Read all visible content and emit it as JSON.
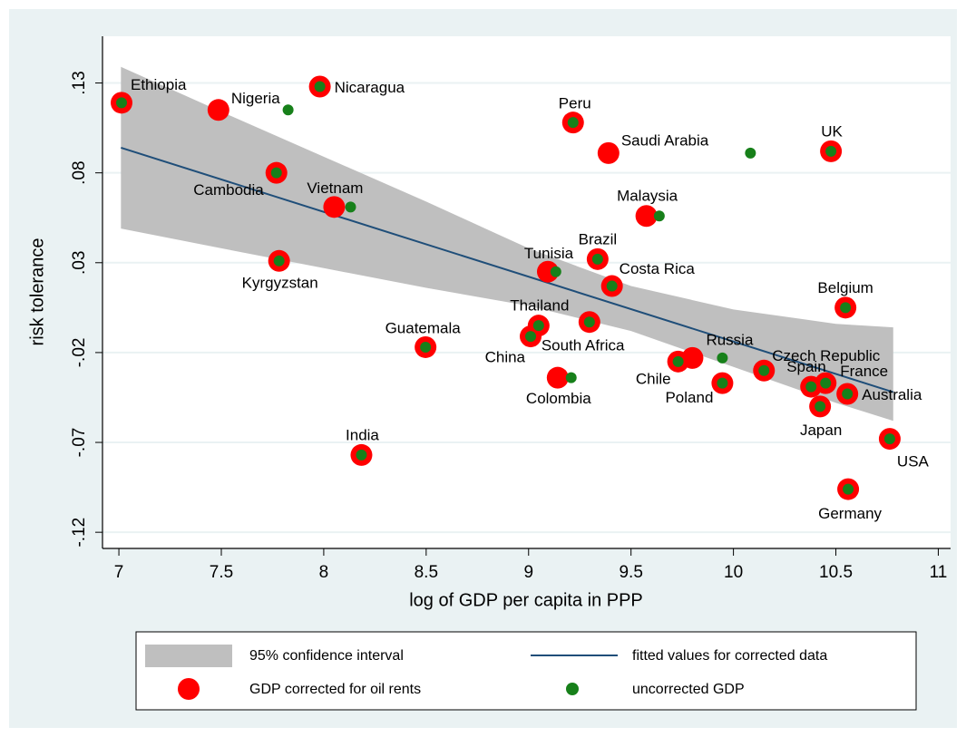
{
  "chart_data": {
    "type": "scatter",
    "xlabel": "log of GDP per capita in PPP",
    "ylabel": "risk tolerance",
    "xlim": [
      6.92,
      11.06
    ],
    "ylim": [
      -0.129,
      0.156
    ],
    "xticks": [
      7,
      7.5,
      8,
      8.5,
      9,
      9.5,
      10,
      10.5,
      11
    ],
    "yticks": [
      {
        "value": 0.13,
        "label": ".13"
      },
      {
        "value": 0.08,
        "label": ".08"
      },
      {
        "value": 0.03,
        "label": ".03"
      },
      {
        "value": -0.02,
        "label": "-.02"
      },
      {
        "value": -0.07,
        "label": "-.07"
      },
      {
        "value": -0.12,
        "label": "-.12"
      }
    ],
    "grid": true,
    "categories": [
      "Ethiopia",
      "Nigeria",
      "Nicaragua",
      "Peru",
      "Saudi Arabia",
      "UK",
      "Cambodia",
      "Vietnam",
      "Malaysia",
      "Kyrgyzstan",
      "Brazil",
      "Tunisia",
      "Costa Rica",
      "Belgium",
      "Thailand",
      "China",
      "South Africa",
      "Guatemala",
      "Russia",
      "Chile",
      "Czech Republic",
      "Colombia",
      "Poland",
      "Spain",
      "France",
      "Australia",
      "Japan",
      "USA",
      "India",
      "Germany"
    ],
    "band": {
      "name": "95% confidence interval",
      "color": "#bfbfbf",
      "x": [
        7.01,
        7.5,
        8,
        8.5,
        9,
        9.5,
        10,
        10.5,
        10.78
      ],
      "upper": [
        0.139,
        0.114,
        0.089,
        0.064,
        0.038,
        0.017,
        0.004,
        -0.004,
        -0.006
      ],
      "lower": [
        0.049,
        0.038,
        0.027,
        0.016,
        0.006,
        -0.008,
        -0.028,
        -0.048,
        -0.058
      ]
    },
    "fit": {
      "name": "fitted values for corrected data",
      "color": "#1f4e79",
      "x": [
        7.01,
        10.78
      ],
      "values": [
        0.094,
        -0.042
      ]
    },
    "series": [
      {
        "name": "GDP corrected for oil rents",
        "color": "#ff0000",
        "x": [
          7.013,
          7.486,
          7.981,
          9.217,
          9.39,
          10.476,
          7.769,
          8.051,
          9.575,
          7.782,
          9.337,
          9.094,
          9.407,
          10.547,
          9.049,
          9.01,
          9.297,
          8.497,
          9.8,
          9.73,
          10.149,
          9.142,
          9.946,
          10.379,
          10.45,
          10.556,
          10.423,
          10.763,
          8.184,
          10.56
        ],
        "values": [
          0.119,
          0.115,
          0.128,
          0.108,
          0.091,
          0.092,
          0.08,
          0.061,
          0.056,
          0.031,
          0.032,
          0.025,
          0.017,
          0.005,
          -0.005,
          -0.011,
          -0.003,
          -0.017,
          -0.023,
          -0.025,
          -0.03,
          -0.034,
          -0.037,
          -0.039,
          -0.037,
          -0.043,
          -0.05,
          -0.068,
          -0.077,
          -0.096
        ]
      },
      {
        "name": "uncorrected GDP",
        "color": "#17801a",
        "x": [
          7.013,
          7.826,
          7.981,
          9.217,
          10.083,
          10.476,
          7.769,
          8.131,
          9.638,
          7.782,
          9.337,
          9.133,
          9.407,
          10.547,
          9.049,
          9.01,
          9.297,
          8.497,
          9.946,
          9.73,
          10.149,
          9.208,
          9.946,
          10.379,
          10.45,
          10.556,
          10.423,
          10.763,
          8.184,
          10.56
        ],
        "values": [
          0.119,
          0.115,
          0.128,
          0.108,
          0.091,
          0.092,
          0.08,
          0.061,
          0.056,
          0.031,
          0.032,
          0.025,
          0.017,
          0.005,
          -0.005,
          -0.011,
          -0.003,
          -0.017,
          -0.023,
          -0.025,
          -0.03,
          -0.034,
          -0.037,
          -0.039,
          -0.037,
          -0.043,
          -0.05,
          -0.068,
          -0.077,
          -0.096
        ]
      }
    ]
  }
}
